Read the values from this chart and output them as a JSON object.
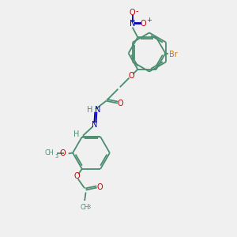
{
  "bg_color": "#f0f0f0",
  "bond_color": "#4a8c6f",
  "atom_colors": {
    "O": "#cc0000",
    "N": "#0000bb",
    "Br": "#cc7700",
    "H": "#4a8c6f",
    "C": "#4a8c6f"
  },
  "figsize": [
    3.0,
    3.0
  ],
  "dpi": 100
}
